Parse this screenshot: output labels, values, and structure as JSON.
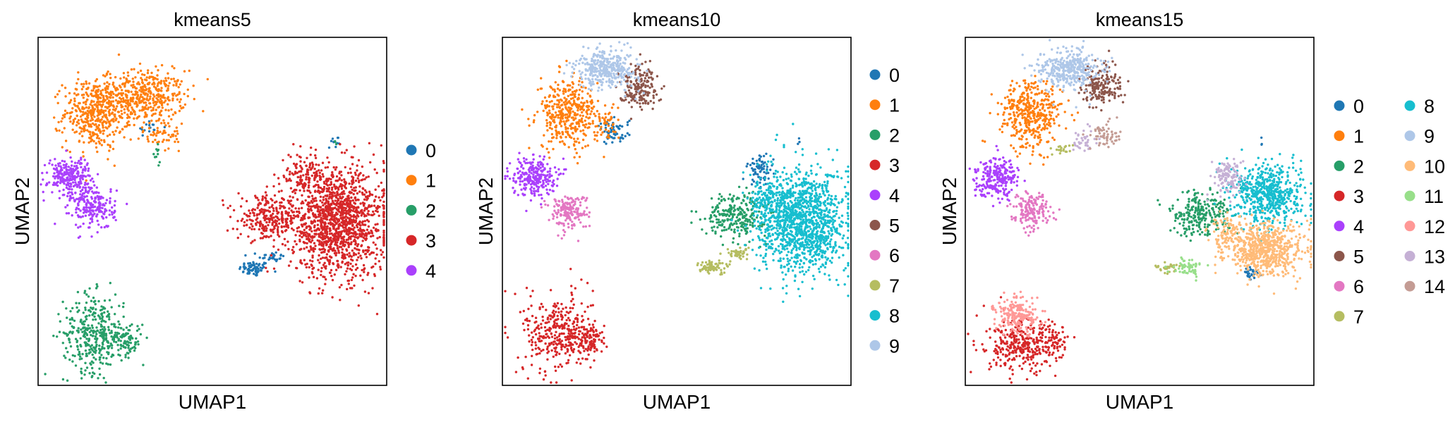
{
  "figure": {
    "panels_count": 3
  },
  "chart_data": [
    {
      "type": "scatter",
      "title": "kmeans5",
      "xlabel": "UMAP1",
      "ylabel": "UMAP2",
      "xlim": [
        0,
        10
      ],
      "ylim": [
        0,
        10
      ],
      "grid": false,
      "ticks": false,
      "legend_placement": "right",
      "legend_columns": 1,
      "legend": [
        "0",
        "1",
        "2",
        "3",
        "4"
      ],
      "colors": [
        "#1f77b4",
        "#ff7f0e",
        "#279e68",
        "#d62728",
        "#aa40fc"
      ],
      "clusters": [
        {
          "label": "0",
          "blobs": [
            [
              6.2,
              3.35,
              0.35,
              0.18,
              70
            ],
            [
              6.7,
              3.7,
              0.3,
              0.12,
              30
            ],
            [
              8.5,
              7.0,
              0.2,
              0.2,
              10
            ],
            [
              3.2,
              7.4,
              0.3,
              0.2,
              15
            ]
          ]
        },
        {
          "label": "1",
          "blobs": [
            [
              3.0,
              8.3,
              1.0,
              0.6,
              450
            ],
            [
              1.6,
              7.8,
              0.7,
              0.8,
              400
            ],
            [
              3.5,
              7.2,
              0.6,
              0.4,
              60
            ]
          ]
        },
        {
          "label": "2",
          "blobs": [
            [
              1.6,
              1.5,
              0.7,
              0.9,
              350
            ],
            [
              2.5,
              1.3,
              0.4,
              0.4,
              100
            ],
            [
              3.4,
              6.6,
              0.1,
              0.2,
              10
            ],
            [
              8.5,
              7.0,
              0.05,
              0.1,
              3
            ]
          ]
        },
        {
          "label": "3",
          "blobs": [
            [
              8.6,
              4.7,
              1.1,
              1.25,
              1400
            ],
            [
              6.6,
              4.8,
              0.7,
              0.5,
              250
            ],
            [
              7.6,
              6.0,
              0.5,
              0.5,
              120
            ]
          ]
        },
        {
          "label": "4",
          "blobs": [
            [
              0.9,
              6.0,
              0.5,
              0.45,
              250
            ],
            [
              1.6,
              5.1,
              0.5,
              0.5,
              200
            ]
          ]
        }
      ]
    },
    {
      "type": "scatter",
      "title": "kmeans10",
      "xlabel": "UMAP1",
      "ylabel": "UMAP2",
      "xlim": [
        0,
        10
      ],
      "ylim": [
        0,
        10
      ],
      "grid": false,
      "ticks": false,
      "legend_placement": "right",
      "legend_columns": 1,
      "legend": [
        "0",
        "1",
        "2",
        "3",
        "4",
        "5",
        "6",
        "7",
        "8",
        "9"
      ],
      "colors": [
        "#1f77b4",
        "#ff7f0e",
        "#279e68",
        "#d62728",
        "#aa40fc",
        "#8c564b",
        "#e377c2",
        "#b5bd61",
        "#17becf",
        "#aec7e8"
      ],
      "clusters": [
        {
          "label": "0",
          "blobs": [
            [
              3.2,
              7.3,
              0.35,
              0.3,
              60
            ],
            [
              7.4,
              6.2,
              0.3,
              0.35,
              70
            ],
            [
              8.5,
              7.0,
              0.05,
              0.1,
              3
            ]
          ]
        },
        {
          "label": "1",
          "blobs": [
            [
              1.9,
              7.8,
              0.7,
              0.8,
              400
            ],
            [
              3.0,
              7.5,
              0.3,
              0.3,
              40
            ]
          ]
        },
        {
          "label": "2",
          "blobs": [
            [
              6.7,
              4.9,
              0.7,
              0.5,
              250
            ]
          ]
        },
        {
          "label": "3",
          "blobs": [
            [
              1.6,
              1.5,
              0.8,
              0.9,
              350
            ],
            [
              2.5,
              1.3,
              0.4,
              0.4,
              100
            ]
          ]
        },
        {
          "label": "4",
          "blobs": [
            [
              0.9,
              6.0,
              0.5,
              0.45,
              250
            ]
          ]
        },
        {
          "label": "5",
          "blobs": [
            [
              3.9,
              8.6,
              0.45,
              0.5,
              180
            ]
          ]
        },
        {
          "label": "6",
          "blobs": [
            [
              1.9,
              5.0,
              0.45,
              0.4,
              180
            ]
          ]
        },
        {
          "label": "7",
          "blobs": [
            [
              6.0,
              3.4,
              0.4,
              0.15,
              70
            ],
            [
              6.8,
              3.8,
              0.3,
              0.15,
              40
            ]
          ]
        },
        {
          "label": "8",
          "blobs": [
            [
              8.6,
              4.7,
              1.0,
              1.2,
              1300
            ],
            [
              7.6,
              5.3,
              0.4,
              0.4,
              100
            ]
          ]
        },
        {
          "label": "9",
          "blobs": [
            [
              3.0,
              9.1,
              0.7,
              0.45,
              350
            ]
          ]
        }
      ]
    },
    {
      "type": "scatter",
      "title": "kmeans15",
      "xlabel": "UMAP1",
      "ylabel": "UMAP2",
      "xlim": [
        0,
        10
      ],
      "ylim": [
        0,
        10
      ],
      "grid": false,
      "ticks": false,
      "legend_placement": "right",
      "legend_columns": 2,
      "legend": [
        "0",
        "1",
        "2",
        "3",
        "4",
        "5",
        "6",
        "7",
        "8",
        "9",
        "10",
        "11",
        "12",
        "13",
        "14"
      ],
      "colors": [
        "#1f77b4",
        "#ff7f0e",
        "#279e68",
        "#d62728",
        "#aa40fc",
        "#8c564b",
        "#e377c2",
        "#b5bd61",
        "#17becf",
        "#aec7e8",
        "#ffbb78",
        "#98df8a",
        "#ff9896",
        "#c5b0d5",
        "#c49c94"
      ],
      "clusters": [
        {
          "label": "0",
          "blobs": [
            [
              8.2,
              3.2,
              0.25,
              0.15,
              30
            ],
            [
              8.5,
              7.0,
              0.05,
              0.1,
              3
            ]
          ]
        },
        {
          "label": "1",
          "blobs": [
            [
              1.9,
              7.8,
              0.7,
              0.8,
              400
            ]
          ]
        },
        {
          "label": "2",
          "blobs": [
            [
              6.7,
              4.9,
              0.7,
              0.5,
              250
            ]
          ]
        },
        {
          "label": "3",
          "blobs": [
            [
              1.6,
              1.1,
              0.8,
              0.6,
              300
            ],
            [
              2.5,
              1.2,
              0.4,
              0.4,
              80
            ]
          ]
        },
        {
          "label": "4",
          "blobs": [
            [
              0.9,
              6.0,
              0.5,
              0.45,
              250
            ]
          ]
        },
        {
          "label": "5",
          "blobs": [
            [
              3.9,
              8.6,
              0.45,
              0.5,
              180
            ]
          ]
        },
        {
          "label": "6",
          "blobs": [
            [
              1.9,
              5.0,
              0.45,
              0.4,
              180
            ]
          ]
        },
        {
          "label": "7",
          "blobs": [
            [
              5.8,
              3.4,
              0.3,
              0.1,
              30
            ],
            [
              2.8,
              6.8,
              0.2,
              0.2,
              20
            ]
          ]
        },
        {
          "label": "8",
          "blobs": [
            [
              8.7,
              5.5,
              0.8,
              0.7,
              600
            ]
          ]
        },
        {
          "label": "9",
          "blobs": [
            [
              3.0,
              9.1,
              0.7,
              0.45,
              350
            ]
          ]
        },
        {
          "label": "10",
          "blobs": [
            [
              8.6,
              3.9,
              0.9,
              0.6,
              650
            ],
            [
              7.5,
              4.4,
              0.4,
              0.35,
              80
            ]
          ]
        },
        {
          "label": "11",
          "blobs": [
            [
              6.4,
              3.4,
              0.3,
              0.2,
              60
            ]
          ]
        },
        {
          "label": "12",
          "blobs": [
            [
              1.5,
              2.0,
              0.5,
              0.4,
              200
            ]
          ]
        },
        {
          "label": "13",
          "blobs": [
            [
              7.5,
              6.0,
              0.35,
              0.4,
              120
            ],
            [
              3.4,
              7.0,
              0.3,
              0.3,
              40
            ]
          ]
        },
        {
          "label": "14",
          "blobs": [
            [
              4.0,
              7.2,
              0.35,
              0.3,
              60
            ]
          ]
        }
      ]
    }
  ]
}
